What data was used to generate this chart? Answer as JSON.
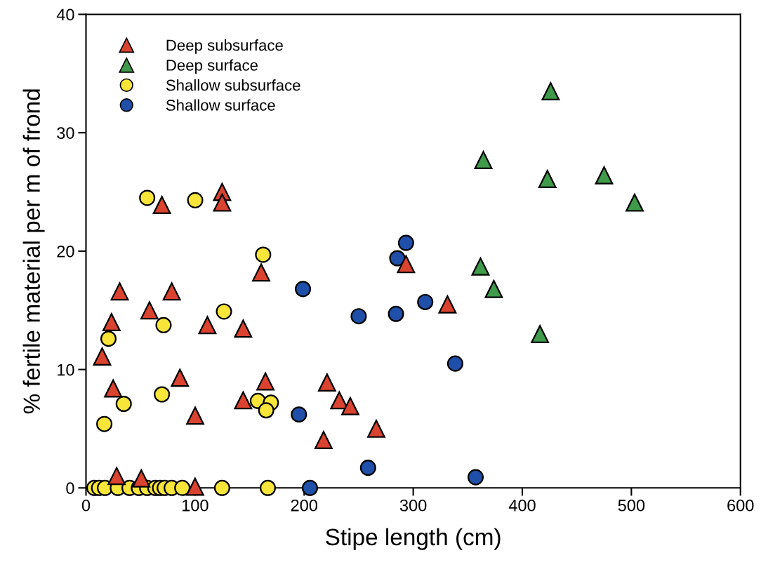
{
  "chart_data": {
    "type": "scatter",
    "xlabel": "Stipe length (cm)",
    "ylabel": "% fertile material per m of frond",
    "xlim": [
      0,
      600
    ],
    "xticks": [
      0,
      100,
      200,
      300,
      400,
      500,
      600
    ],
    "ylim": [
      0,
      40
    ],
    "yticks": [
      0,
      10,
      20,
      30,
      40
    ],
    "grid": false,
    "legend": "top left",
    "series": [
      {
        "name": "Deep subsurface",
        "color": "#d9432f",
        "marker": "triangle",
        "x": [
          69.6,
          124.8,
          124.8,
          160.6,
          30.9,
          78.6,
          58.2,
          23.4,
          111.3,
          144.1,
          14.8,
          24.9,
          86.1,
          164.5,
          144.1,
          100.1,
          28.1,
          50.7,
          100,
          293.4,
          331.4,
          221,
          232.2,
          242.3,
          266.1,
          217.8
        ],
        "values": [
          23.9,
          25.0,
          24.1,
          18.2,
          16.6,
          16.6,
          15.0,
          14.0,
          13.75,
          13.45,
          11.1,
          8.4,
          9.3,
          9.0,
          7.4,
          6.1,
          1.0,
          0.8,
          0.1,
          18.9,
          15.5,
          8.9,
          7.4,
          6.9,
          5.0,
          4.05
        ]
      },
      {
        "name": "Deep surface",
        "color": "#3f9a4a",
        "marker": "triangle",
        "x": [
          426,
          364.3,
          423,
          475,
          503,
          361.7,
          373.9,
          416.2
        ],
        "values": [
          33.5,
          27.7,
          26.1,
          26.4,
          24.1,
          18.7,
          16.8,
          13.0
        ]
      },
      {
        "name": "Shallow subsurface",
        "color": "#f7e53a",
        "marker": "circle",
        "x": [
          56.1,
          100.1,
          162.4,
          126.5,
          71.1,
          20.6,
          69.6,
          34.6,
          157.6,
          169.5,
          165.2,
          16.8,
          7.7,
          12.0,
          17.4,
          29.2,
          39.9,
          48.5,
          56.1,
          63.6,
          67.9,
          72.2,
          78.6,
          88.3,
          124.8,
          166.7
        ],
        "values": [
          24.5,
          24.3,
          19.7,
          14.9,
          13.75,
          12.6,
          7.9,
          7.1,
          7.35,
          7.2,
          6.55,
          5.4,
          0,
          0,
          0,
          0,
          0,
          0,
          0,
          0,
          0,
          0,
          0,
          0,
          0,
          0
        ]
      },
      {
        "name": "Shallow surface",
        "color": "#1f4fa8",
        "marker": "circle",
        "x": [
          198.9,
          195.2,
          205.3,
          293.4,
          285.4,
          311.0,
          250,
          284.2,
          338.5,
          258.6,
          357.2
        ],
        "values": [
          16.8,
          6.2,
          0,
          20.7,
          19.4,
          15.7,
          14.5,
          14.7,
          10.5,
          1.7,
          0.9
        ]
      }
    ]
  }
}
